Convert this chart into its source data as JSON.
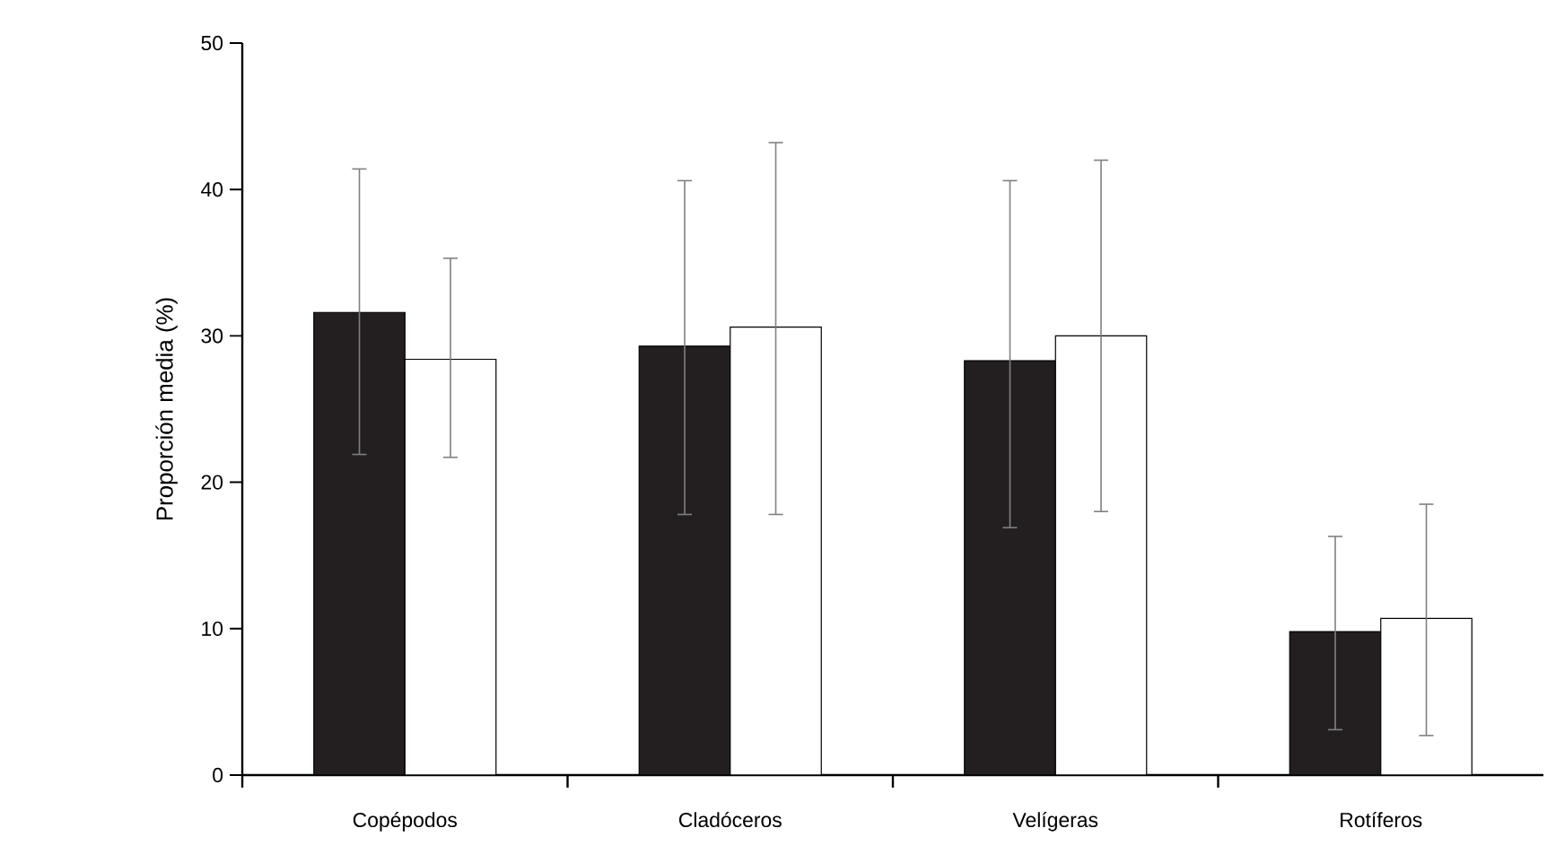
{
  "chart_data": {
    "type": "bar",
    "ylabel": "Proporción media (%)",
    "categories": [
      "Copépodos",
      "Cladóceros",
      "Velígeras",
      "Rotíferos"
    ],
    "series": [
      {
        "color": "#231f20",
        "values": [
          31.6,
          29.3,
          28.3,
          9.8
        ],
        "errors": [
          [
            21.9,
            41.4
          ],
          [
            17.8,
            40.6
          ],
          [
            16.9,
            40.6
          ],
          [
            3.1,
            16.3
          ]
        ]
      },
      {
        "color": "#ffffff",
        "values": [
          28.4,
          30.6,
          30.0,
          10.7
        ],
        "errors": [
          [
            21.7,
            35.3
          ],
          [
            17.8,
            43.2
          ],
          [
            18.0,
            42.0
          ],
          [
            2.7,
            18.5
          ]
        ]
      }
    ],
    "ylim": [
      0,
      50
    ],
    "yticks": [
      0,
      10,
      20,
      30,
      40,
      50
    ]
  }
}
